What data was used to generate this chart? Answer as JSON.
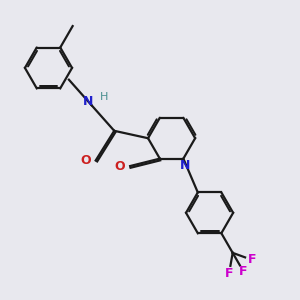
{
  "bg_color": "#e8e8ee",
  "bond_color": "#1a1a1a",
  "N_color": "#2020cc",
  "O_color": "#cc2020",
  "F_color": "#cc00cc",
  "H_color": "#4a9090",
  "line_width": 1.6,
  "dbo": 0.018,
  "figsize": [
    3.0,
    3.0
  ],
  "dpi": 100,
  "xlim": [
    -0.1,
    2.6
  ],
  "ylim": [
    -0.4,
    2.7
  ]
}
